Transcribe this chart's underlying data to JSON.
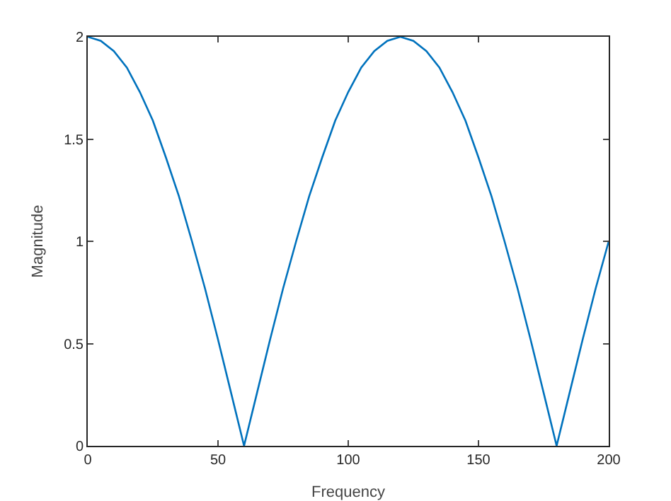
{
  "chart_data": {
    "type": "line",
    "xlabel": "Frequency",
    "ylabel": "Magnitude",
    "x": [
      0,
      5,
      10,
      15,
      20,
      25,
      30,
      35,
      40,
      45,
      50,
      55,
      60,
      65,
      70,
      75,
      80,
      85,
      90,
      95,
      100,
      105,
      110,
      115,
      120,
      125,
      130,
      135,
      140,
      145,
      150,
      155,
      160,
      165,
      170,
      175,
      180,
      185,
      190,
      195,
      200
    ],
    "series": [
      {
        "color": "#0072bd",
        "values": [
          2,
          1.98,
          1.93,
          1.85,
          1.73,
          1.59,
          1.41,
          1.22,
          1,
          0.77,
          0.52,
          0.26,
          0,
          0.26,
          0.52,
          0.77,
          1,
          1.22,
          1.41,
          1.59,
          1.73,
          1.85,
          1.93,
          1.98,
          2,
          1.98,
          1.93,
          1.85,
          1.73,
          1.59,
          1.41,
          1.22,
          1,
          0.77,
          0.52,
          0.26,
          0,
          0.26,
          0.52,
          0.77,
          1
        ]
      }
    ],
    "xlim": [
      0,
      200
    ],
    "xticks": [
      0,
      50,
      100,
      150,
      200
    ],
    "ylim": [
      0,
      2
    ],
    "yticks": [
      0,
      0.5,
      1,
      1.5,
      2
    ],
    "grid": false,
    "marker": "none",
    "line_style": "solid"
  }
}
